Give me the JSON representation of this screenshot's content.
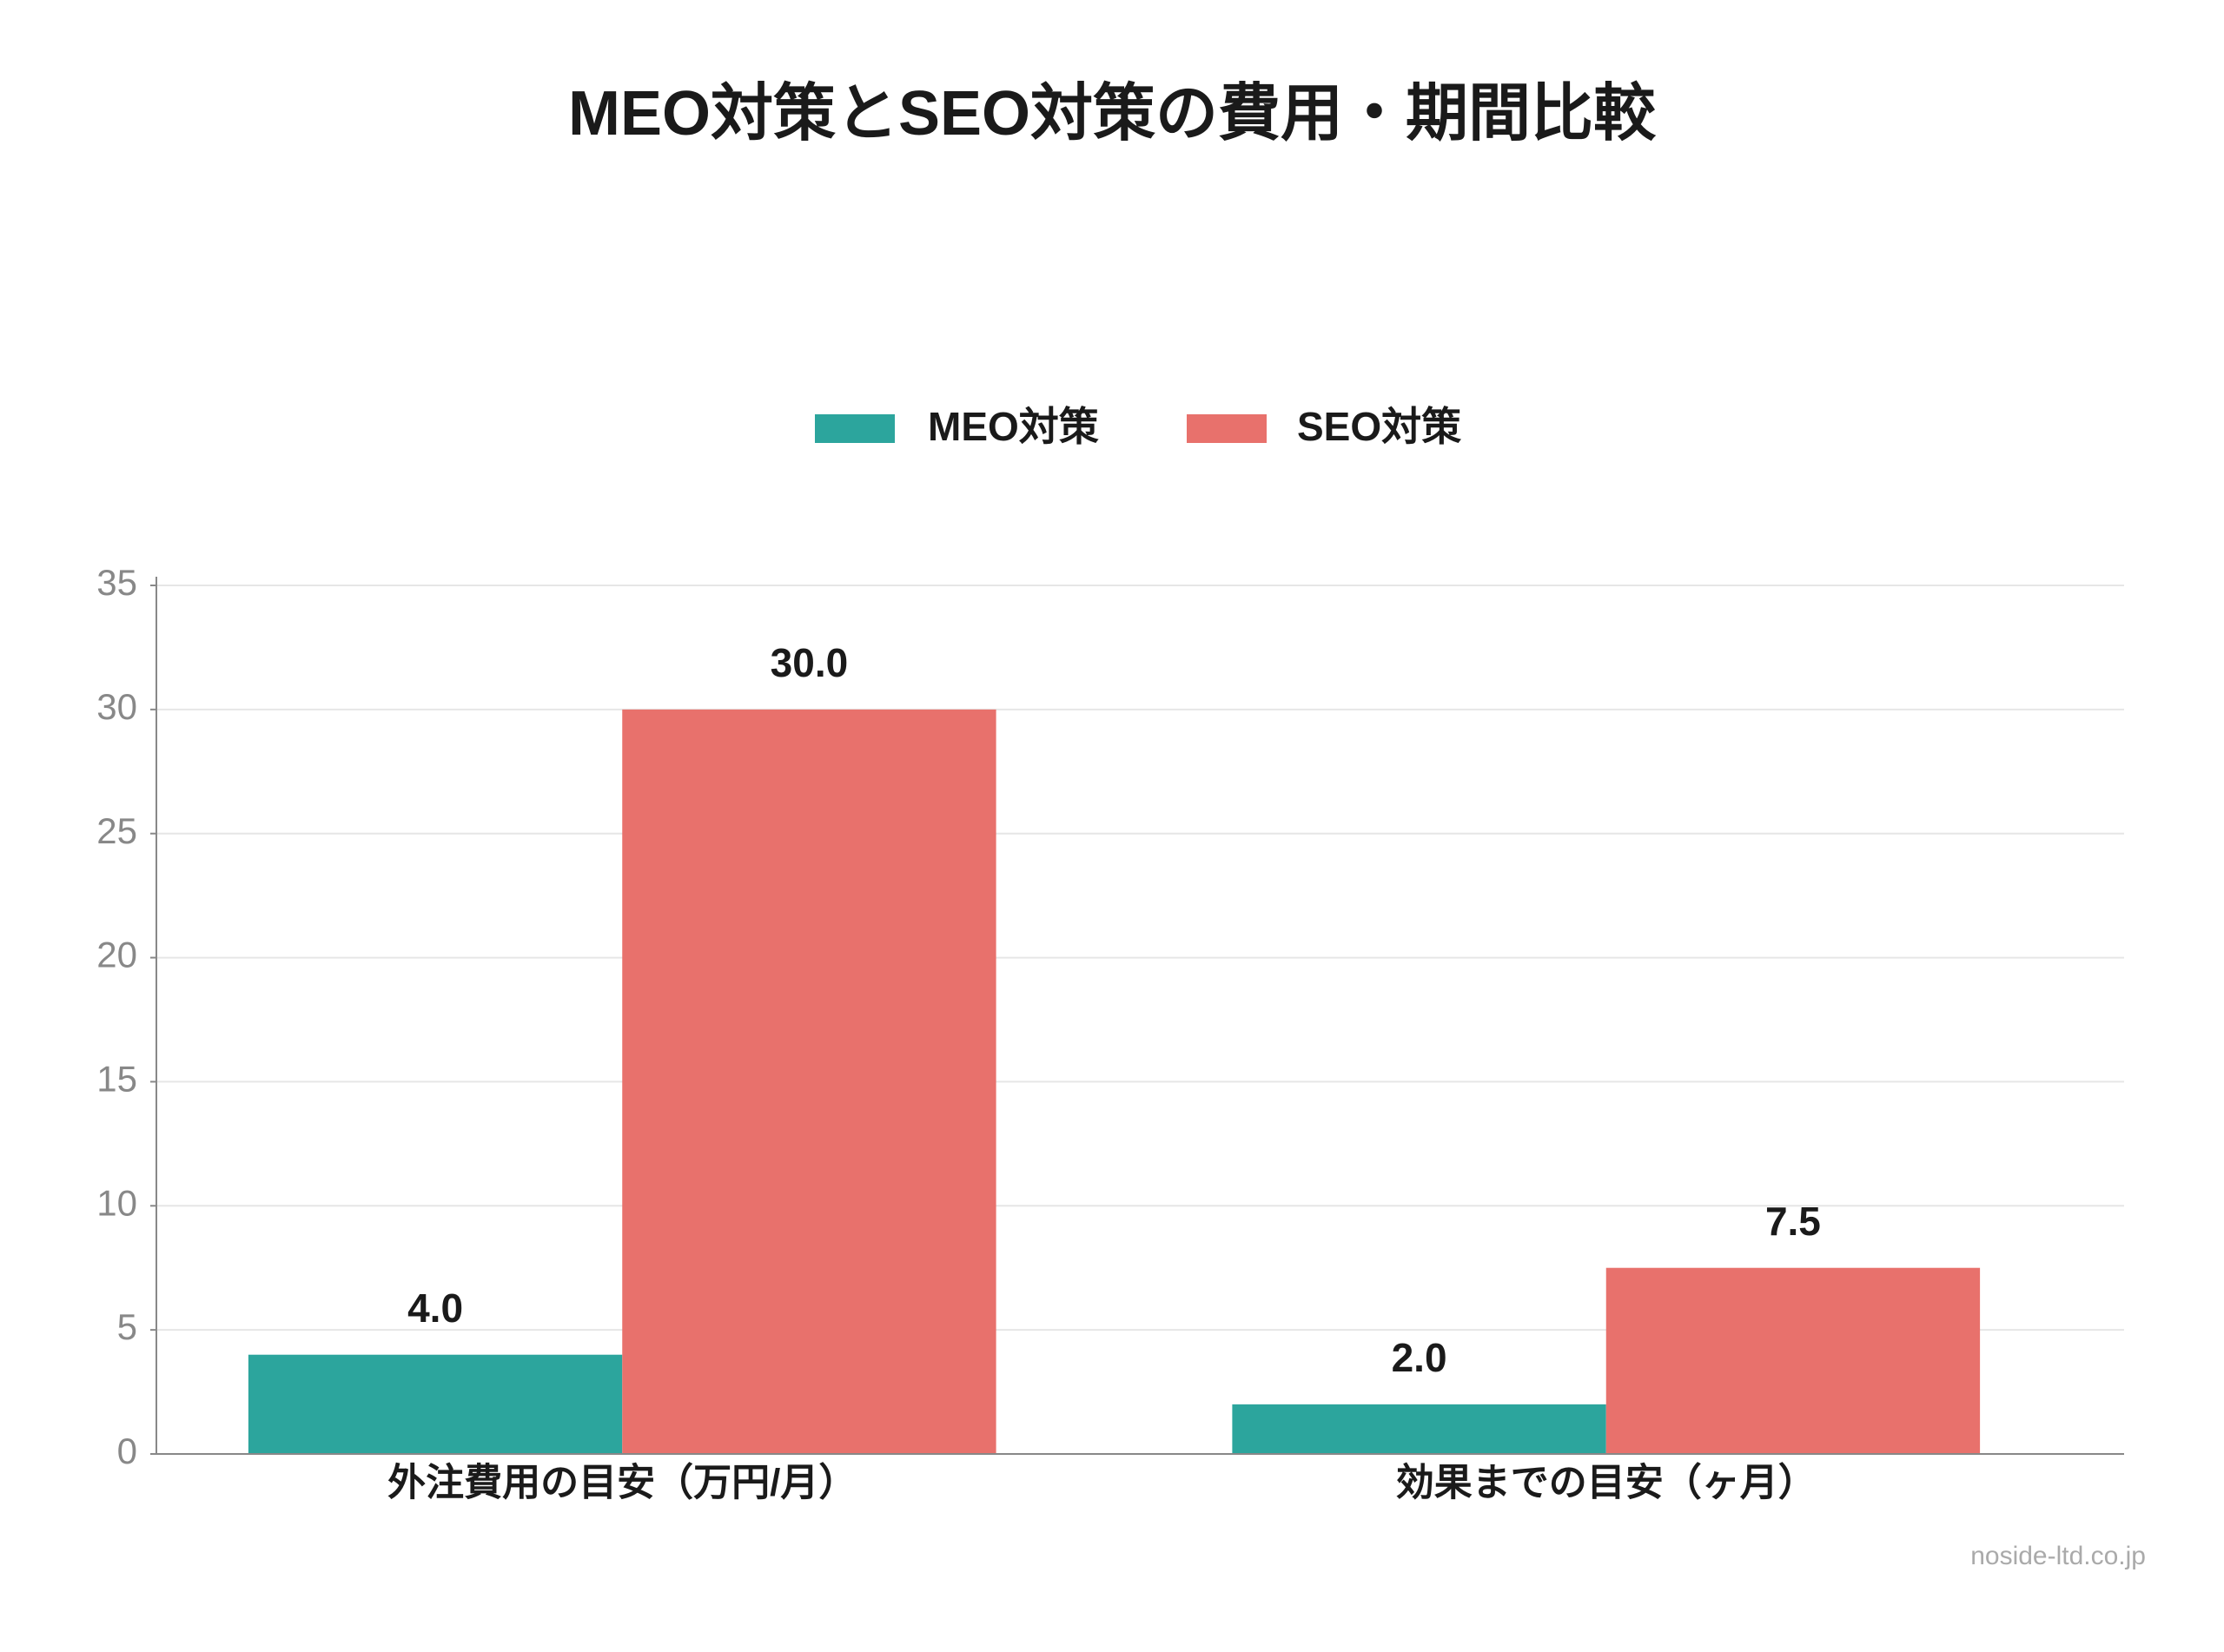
{
  "chart_data": {
    "type": "bar",
    "title": "MEO対策とSEO対策の費用・期間比較",
    "categories": [
      "外注費用の目安（万円/月）",
      "効果までの目安（ヶ月）"
    ],
    "series": [
      {
        "name": "MEO対策",
        "color": "#2ca59d",
        "values": [
          4,
          2
        ],
        "value_labels": [
          "4.0",
          "2.0"
        ]
      },
      {
        "name": "SEO対策",
        "color": "#e8716c",
        "values": [
          30,
          7.5
        ],
        "value_labels": [
          "30.0",
          "7.5"
        ]
      }
    ],
    "ylim": [
      0,
      35
    ],
    "yticks": [
      0,
      5,
      10,
      15,
      20,
      25,
      30,
      35
    ],
    "grid": true,
    "legend": "top",
    "source": "noside-ltd.co.jp"
  }
}
